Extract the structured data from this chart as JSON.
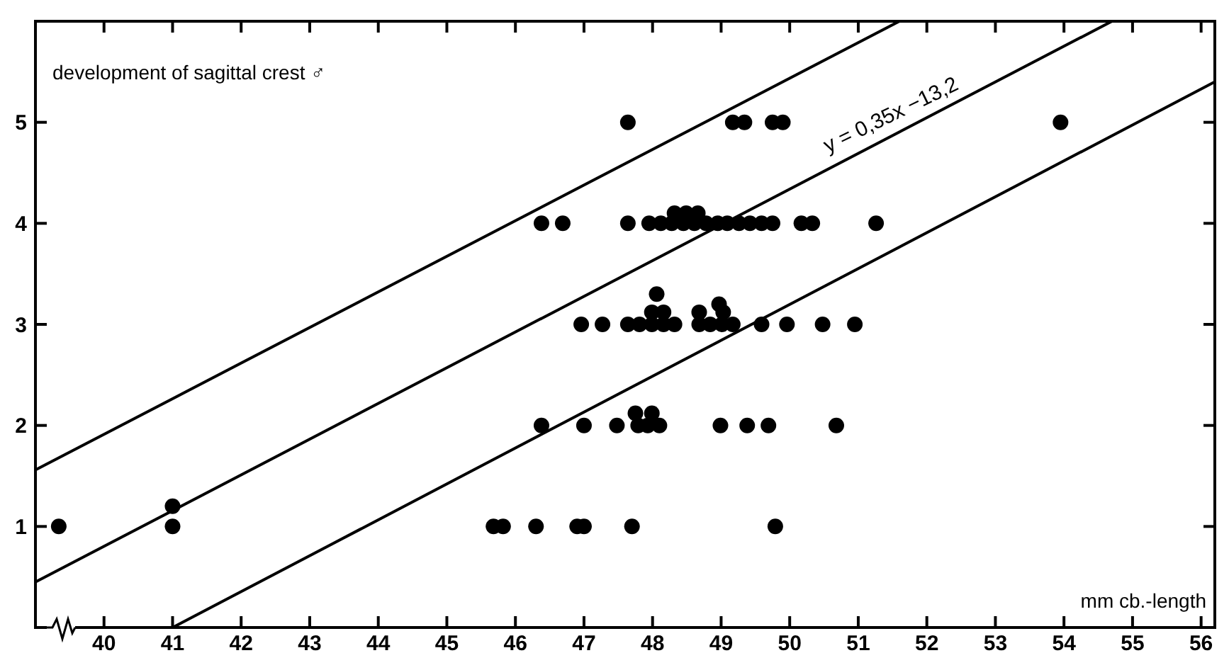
{
  "chart_data": {
    "type": "scatter",
    "ylabel": "development of sagittal crest ♂",
    "xlabel": "mm cb.-length",
    "xlim": [
      39,
      56.2
    ],
    "ylim": [
      0,
      6
    ],
    "xticks": [
      40,
      41,
      42,
      43,
      44,
      45,
      46,
      47,
      48,
      49,
      50,
      51,
      52,
      53,
      54,
      55,
      56
    ],
    "yticks": [
      1,
      2,
      3,
      4,
      5
    ],
    "grid": false,
    "marker": "circle",
    "annotations": [
      {
        "text": "y = 0,35x −13,2",
        "x": 51.6,
        "y": 4.9
      }
    ],
    "series": [
      {
        "color": "#000000",
        "x": [
          39.34,
          41.0,
          41.0,
          45.68,
          45.82,
          46.3,
          46.9,
          47.0,
          47.7,
          49.79
        ],
        "values": [
          1,
          1,
          1.2,
          1,
          1,
          1,
          1,
          1,
          1,
          1
        ]
      },
      {
        "color": "#000000",
        "x": [
          46.38,
          47.0,
          47.48,
          47.79,
          47.93,
          48.1,
          48.99,
          49.38,
          49.69,
          50.68,
          47.75,
          47.99
        ],
        "values": [
          2,
          2,
          2,
          2,
          2,
          2,
          2,
          2,
          2,
          2,
          2.12,
          2.12
        ]
      },
      {
        "color": "#000000",
        "x": [
          46.96,
          47.27,
          47.64,
          47.81,
          47.99,
          48.16,
          48.32,
          48.68,
          48.84,
          49.01,
          49.17,
          49.59,
          49.96,
          50.48,
          50.95,
          47.99,
          48.16,
          48.06,
          48.68,
          49.03,
          48.97
        ],
        "values": [
          3,
          3,
          3,
          3,
          3,
          3,
          3,
          3,
          3,
          3,
          3,
          3,
          3,
          3,
          3,
          3.12,
          3.12,
          3.3,
          3.12,
          3.12,
          3.2
        ]
      },
      {
        "color": "#000000",
        "x": [
          46.38,
          46.69,
          47.64,
          47.95,
          48.12,
          48.28,
          48.45,
          48.61,
          48.78,
          48.95,
          49.09,
          49.26,
          49.42,
          49.59,
          49.75,
          50.17,
          50.33,
          51.26,
          48.32,
          48.49,
          48.66
        ],
        "values": [
          4,
          4,
          4,
          4,
          4,
          4,
          4,
          4,
          4,
          4,
          4,
          4,
          4,
          4,
          4,
          4,
          4,
          4,
          4.1,
          4.1,
          4.1
        ]
      },
      {
        "color": "#000000",
        "x": [
          47.64,
          49.17,
          49.34,
          49.75,
          49.9,
          53.95
        ],
        "values": [
          5,
          5,
          5,
          5,
          5,
          5
        ]
      },
      {
        "type": "line",
        "marker": "none",
        "color": "#000000",
        "x": [
          39,
          51.6
        ],
        "values": [
          1.56,
          6
        ]
      },
      {
        "type": "line",
        "marker": "none",
        "color": "#000000",
        "x": [
          39,
          54.7
        ],
        "values": [
          0.45,
          6
        ]
      },
      {
        "type": "line",
        "marker": "none",
        "color": "#000000",
        "x": [
          41,
          56.2
        ],
        "values": [
          0,
          5.4
        ]
      }
    ]
  }
}
